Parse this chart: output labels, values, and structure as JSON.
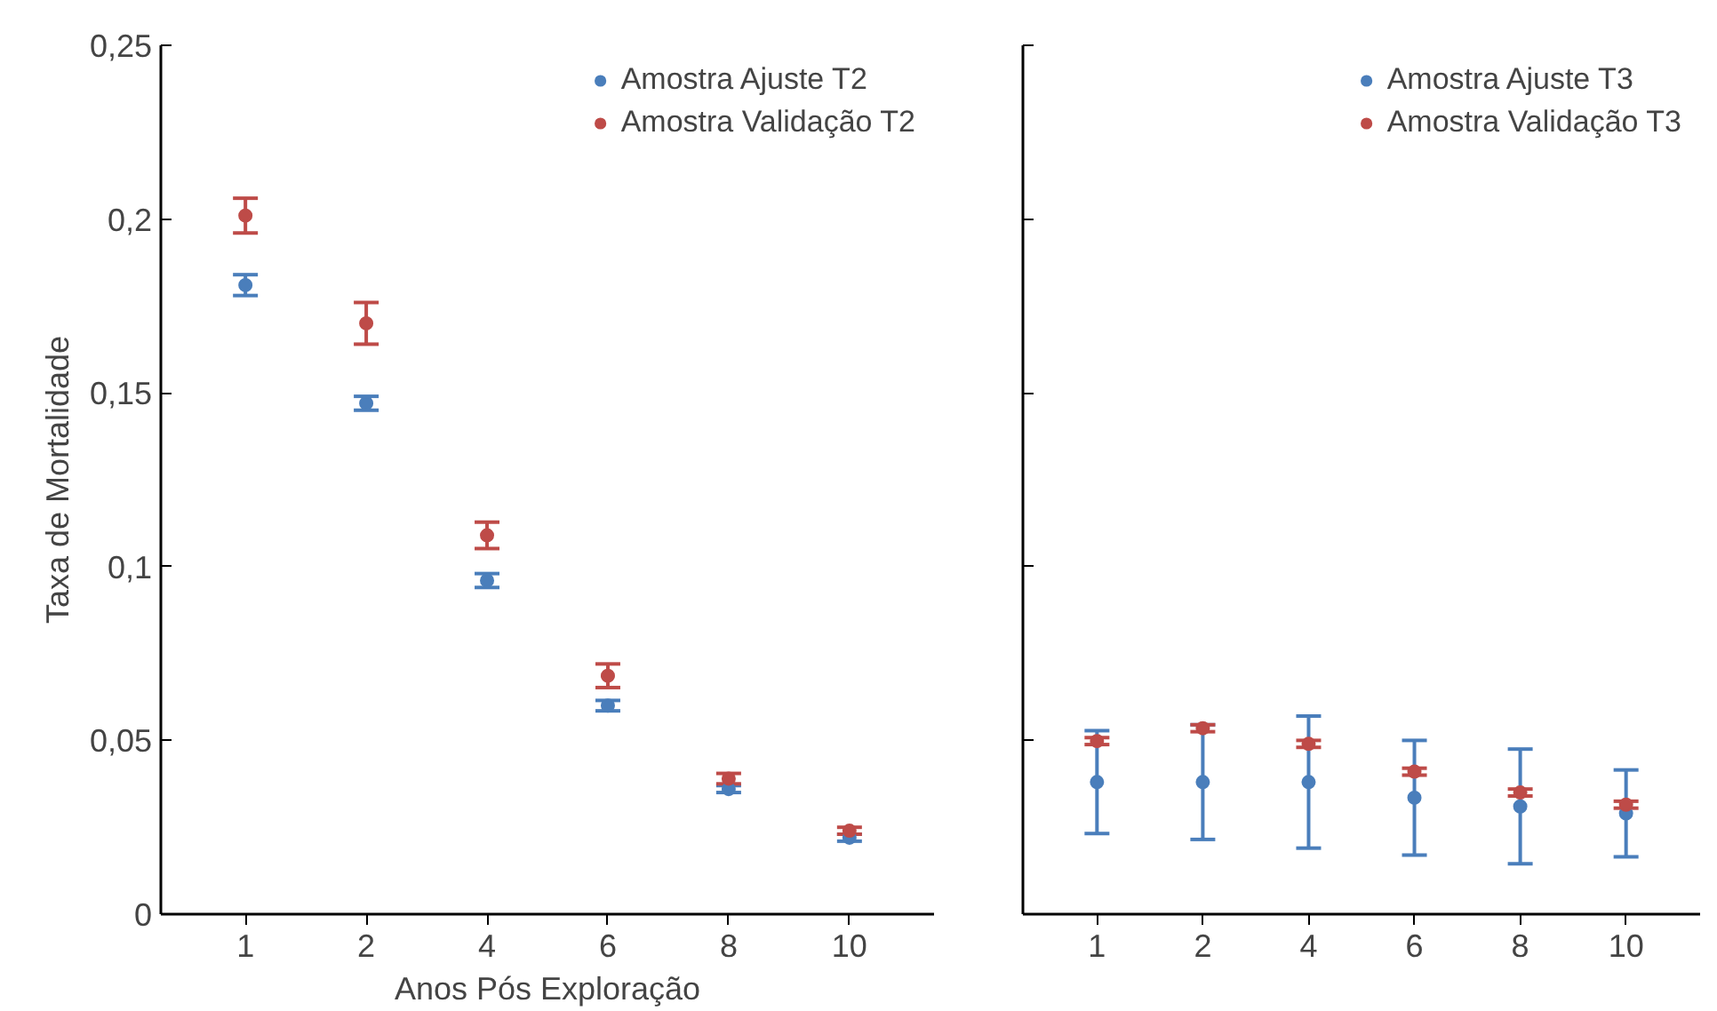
{
  "chart_data": [
    {
      "type": "scatter",
      "xlabel": "Anos Pós Exploração",
      "ylabel": "Taxa de Mortalidade",
      "categories": [
        "1",
        "2",
        "4",
        "6",
        "8",
        "10"
      ],
      "ylim": [
        0,
        0.25
      ],
      "yticks": [
        {
          "value": 0,
          "label": "0"
        },
        {
          "value": 0.05,
          "label": "0,05"
        },
        {
          "value": 0.1,
          "label": "0,1"
        },
        {
          "value": 0.15,
          "label": "0,15"
        },
        {
          "value": 0.2,
          "label": "0,2"
        },
        {
          "value": 0.25,
          "label": "0,25"
        }
      ],
      "grid": false,
      "legend": "top right",
      "marker": "circle",
      "series": [
        {
          "name": "Amostra Ajuste T2",
          "color": "#4a7ebb",
          "values": [
            0.181,
            0.147,
            0.096,
            0.06,
            0.036,
            0.022
          ],
          "errors": [
            0.003,
            0.002,
            0.002,
            0.0015,
            0.001,
            0.001
          ]
        },
        {
          "name": "Amostra Validação T2",
          "color": "#be4b48",
          "values": [
            0.201,
            0.17,
            0.109,
            0.0686,
            0.039,
            0.024
          ],
          "errors": [
            0.005,
            0.006,
            0.0038,
            0.0034,
            0.0015,
            0.001
          ]
        }
      ]
    },
    {
      "type": "scatter",
      "categories": [
        "1",
        "2",
        "4",
        "6",
        "8",
        "10"
      ],
      "ylim": [
        0,
        0.25
      ],
      "yticks": [
        {
          "value": 0,
          "label": null
        },
        {
          "value": 0.05,
          "label": null
        },
        {
          "value": 0.1,
          "label": null
        },
        {
          "value": 0.15,
          "label": null
        },
        {
          "value": 0.2,
          "label": null
        },
        {
          "value": 0.25,
          "label": null
        }
      ],
      "tick_labels": "x",
      "grid": false,
      "legend": "top right",
      "marker": "circle",
      "series": [
        {
          "name": "Amostra Ajuste T3",
          "color": "#4a7ebb",
          "values": [
            0.038,
            0.038,
            0.038,
            0.0335,
            0.031,
            0.029
          ],
          "errors": [
            0.0148,
            0.0165,
            0.019,
            0.0165,
            0.0165,
            0.0125
          ]
        },
        {
          "name": "Amostra Validação T3",
          "color": "#be4b48",
          "values": [
            0.0498,
            0.0535,
            0.049,
            0.041,
            0.035,
            0.0315
          ],
          "errors": [
            0.001,
            0.001,
            0.001,
            0.001,
            0.001,
            0.001
          ]
        }
      ]
    }
  ]
}
